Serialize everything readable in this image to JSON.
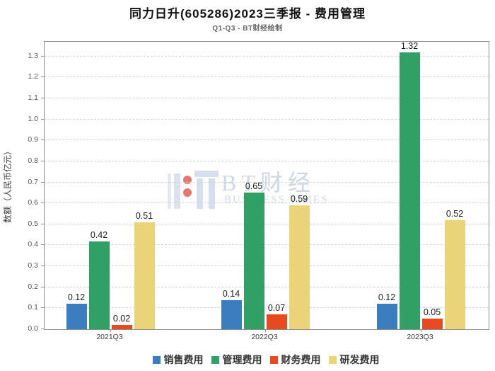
{
  "chart_data": {
    "type": "bar",
    "title": "同力日升(605286)2023三季报 - 费用管理",
    "subtitle": "Q1-Q3 - BT财经绘制",
    "xlabel": "",
    "ylabel": "数额（人民币亿元）",
    "categories": [
      "2021Q3",
      "2022Q3",
      "2023Q3"
    ],
    "series": [
      {
        "name": "销售费用",
        "color": "#3a7ebf",
        "values": [
          0.12,
          0.14,
          0.12
        ]
      },
      {
        "name": "管理费用",
        "color": "#31a065",
        "values": [
          0.42,
          0.65,
          1.32
        ]
      },
      {
        "name": "财务费用",
        "color": "#e8491f",
        "values": [
          0.02,
          0.07,
          0.05
        ]
      },
      {
        "name": "研发费用",
        "color": "#ebd377",
        "values": [
          0.51,
          0.59,
          0.52
        ]
      }
    ],
    "ylim": [
      0,
      1.37
    ],
    "yticks": [
      0.0,
      0.1,
      0.2,
      0.3,
      0.4,
      0.5,
      0.6,
      0.7,
      0.8,
      0.9,
      1.0,
      1.1,
      1.2,
      1.3
    ],
    "grid": "horizontal-dashed",
    "legend_position": "bottom",
    "value_labels": true
  },
  "watermark": {
    "logo": "bt-caijing-logo",
    "text": "BT财经",
    "subtext": "BUSINESS TIMES"
  },
  "colors": {
    "frame": "#8d8d8d",
    "gridline": "#d4d4d4",
    "tick_text": "#555555",
    "label_text": "#1a1a1a"
  }
}
